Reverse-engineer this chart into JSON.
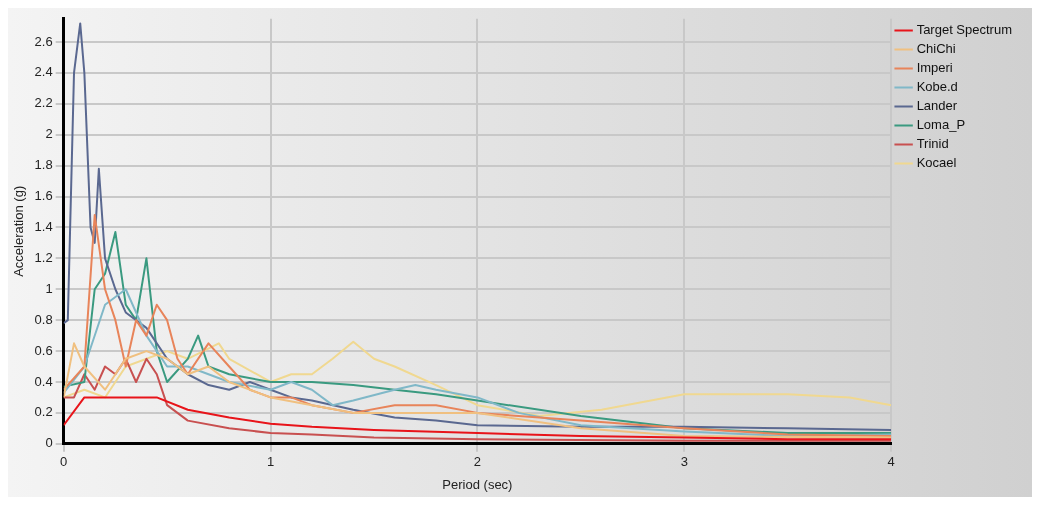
{
  "chart_data": {
    "type": "line",
    "xlabel": "Period (sec)",
    "ylabel": "Acceleration (g)",
    "xlim": [
      0,
      4
    ],
    "xticks": [
      0,
      1,
      2,
      3,
      4
    ],
    "ylim": [
      0,
      2.75
    ],
    "yticks": [
      0,
      0.2,
      0.4,
      0.6,
      0.8,
      1,
      1.2,
      1.4,
      1.6,
      1.8,
      2,
      2.2,
      2.4,
      2.6
    ],
    "grid": true,
    "legend": "right",
    "marker": "none",
    "line_style": "solid",
    "series": [
      {
        "name": "Target Spectrum",
        "color": "#e8141a",
        "x": [
          0,
          0.1,
          0.45,
          0.6,
          0.8,
          1.0,
          1.2,
          1.5,
          2,
          2.5,
          3,
          3.5,
          4
        ],
        "values": [
          0.12,
          0.3,
          0.3,
          0.22,
          0.17,
          0.13,
          0.11,
          0.09,
          0.07,
          0.05,
          0.04,
          0.03,
          0.03
        ]
      },
      {
        "name": "ChiChi",
        "color": "#f0c080",
        "x": [
          0,
          0.05,
          0.1,
          0.2,
          0.3,
          0.4,
          0.5,
          0.6,
          0.7,
          0.8,
          1.0,
          1.2,
          1.4,
          1.6,
          2.0,
          2.5,
          3,
          4
        ],
        "values": [
          0.3,
          0.65,
          0.5,
          0.35,
          0.55,
          0.6,
          0.55,
          0.45,
          0.5,
          0.4,
          0.3,
          0.25,
          0.2,
          0.2,
          0.2,
          0.1,
          0.05,
          0.04
        ]
      },
      {
        "name": "Imperi",
        "color": "#e8845a",
        "x": [
          0,
          0.1,
          0.15,
          0.2,
          0.25,
          0.3,
          0.35,
          0.4,
          0.45,
          0.5,
          0.55,
          0.6,
          0.7,
          0.8,
          0.9,
          1.0,
          1.1,
          1.2,
          1.4,
          1.6,
          1.8,
          2.0,
          2.5,
          3,
          3.5,
          4
        ],
        "values": [
          0.35,
          0.5,
          1.48,
          1.0,
          0.8,
          0.5,
          0.8,
          0.7,
          0.9,
          0.8,
          0.55,
          0.45,
          0.65,
          0.5,
          0.35,
          0.3,
          0.3,
          0.25,
          0.2,
          0.25,
          0.25,
          0.2,
          0.15,
          0.1,
          0.06,
          0.05
        ]
      },
      {
        "name": "Kobe.d",
        "color": "#80b8c8",
        "x": [
          0,
          0.1,
          0.2,
          0.3,
          0.4,
          0.5,
          0.6,
          0.8,
          1.0,
          1.1,
          1.2,
          1.3,
          1.4,
          1.6,
          1.7,
          1.8,
          2.0,
          2.2,
          2.5,
          3,
          3.5,
          4
        ],
        "values": [
          0.33,
          0.5,
          0.9,
          1.0,
          0.7,
          0.5,
          0.5,
          0.4,
          0.35,
          0.4,
          0.35,
          0.25,
          0.28,
          0.35,
          0.38,
          0.35,
          0.3,
          0.2,
          0.12,
          0.08,
          0.05,
          0.06
        ]
      },
      {
        "name": "Lander",
        "color": "#5a6890",
        "x": [
          0,
          0.02,
          0.05,
          0.08,
          0.1,
          0.13,
          0.15,
          0.17,
          0.2,
          0.25,
          0.3,
          0.4,
          0.5,
          0.6,
          0.7,
          0.8,
          0.9,
          1.0,
          1.1,
          1.2,
          1.4,
          1.6,
          1.8,
          2.0,
          2.5,
          3.0,
          3.5,
          4
        ],
        "values": [
          0.78,
          0.8,
          2.4,
          2.72,
          2.4,
          1.4,
          1.3,
          1.78,
          1.2,
          1.0,
          0.85,
          0.75,
          0.55,
          0.45,
          0.38,
          0.35,
          0.4,
          0.35,
          0.3,
          0.28,
          0.22,
          0.17,
          0.15,
          0.12,
          0.11,
          0.11,
          0.1,
          0.09
        ]
      },
      {
        "name": "Loma_P",
        "color": "#3a9a80",
        "x": [
          0,
          0.1,
          0.15,
          0.2,
          0.25,
          0.3,
          0.35,
          0.4,
          0.45,
          0.5,
          0.6,
          0.65,
          0.7,
          0.8,
          1.0,
          1.2,
          1.4,
          1.6,
          1.8,
          2.0,
          2.5,
          3.0,
          3.5,
          4
        ],
        "values": [
          0.37,
          0.4,
          1.0,
          1.1,
          1.37,
          0.9,
          0.8,
          1.2,
          0.6,
          0.4,
          0.55,
          0.7,
          0.5,
          0.45,
          0.4,
          0.4,
          0.38,
          0.35,
          0.32,
          0.28,
          0.18,
          0.1,
          0.07,
          0.07
        ]
      },
      {
        "name": "Trinid",
        "color": "#c85050",
        "x": [
          0,
          0.05,
          0.1,
          0.15,
          0.2,
          0.25,
          0.3,
          0.35,
          0.4,
          0.45,
          0.5,
          0.6,
          0.8,
          1.0,
          1.2,
          1.5,
          2,
          3,
          4
        ],
        "values": [
          0.3,
          0.3,
          0.45,
          0.35,
          0.5,
          0.45,
          0.55,
          0.4,
          0.55,
          0.45,
          0.25,
          0.15,
          0.1,
          0.07,
          0.06,
          0.04,
          0.03,
          0.02,
          0.02
        ]
      },
      {
        "name": "Kocael",
        "color": "#f0d890",
        "x": [
          0,
          0.1,
          0.2,
          0.3,
          0.5,
          0.6,
          0.75,
          0.8,
          1.0,
          1.1,
          1.2,
          1.3,
          1.4,
          1.5,
          1.6,
          1.8,
          2.0,
          2.3,
          2.6,
          3.0,
          3.5,
          3.8,
          4
        ],
        "values": [
          0.3,
          0.35,
          0.3,
          0.5,
          0.6,
          0.55,
          0.65,
          0.55,
          0.4,
          0.45,
          0.45,
          0.55,
          0.66,
          0.55,
          0.5,
          0.38,
          0.25,
          0.18,
          0.22,
          0.32,
          0.32,
          0.3,
          0.25
        ]
      }
    ]
  }
}
